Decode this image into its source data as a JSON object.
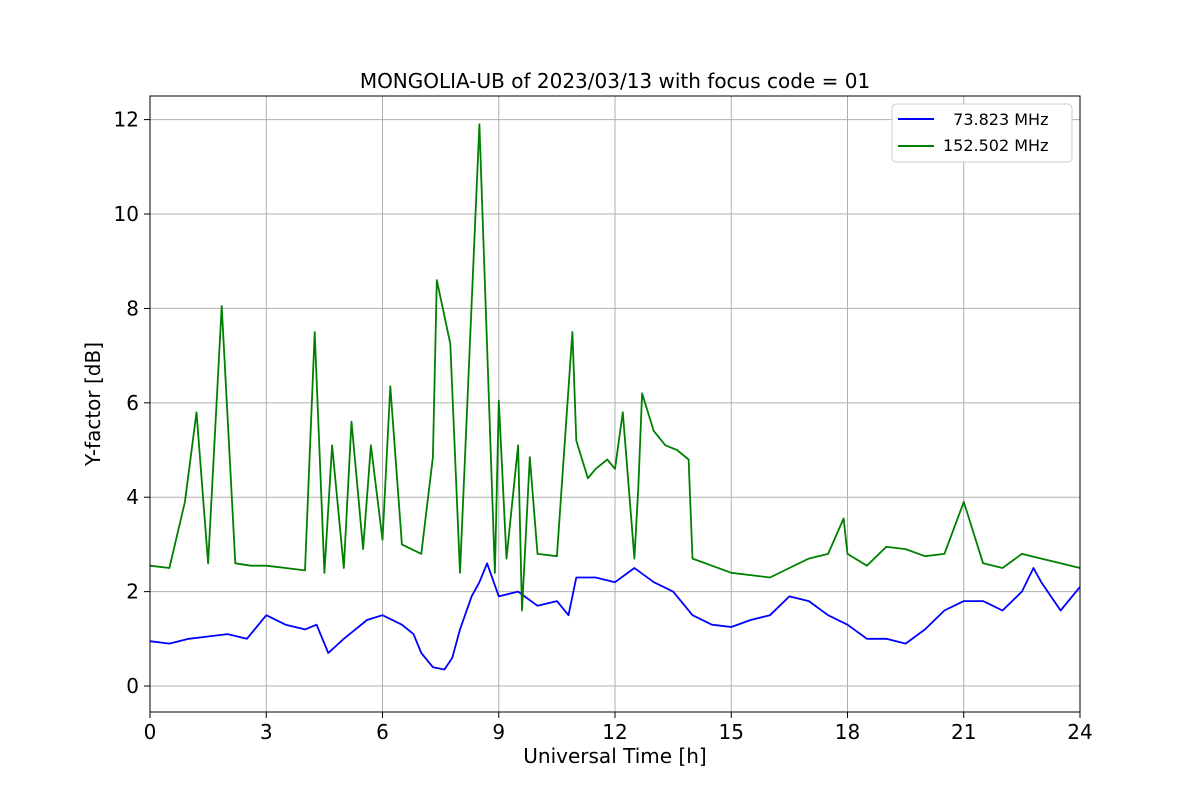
{
  "chart_data": {
    "type": "line",
    "title": "MONGOLIA-UB of 2023/03/13 with focus code = 01",
    "xlabel": "Universal Time [h]",
    "ylabel": "Y-factor [dB]",
    "xlim": [
      0,
      24
    ],
    "ylim": [
      -0.55,
      12.5
    ],
    "xticks": [
      0,
      3,
      6,
      9,
      12,
      15,
      18,
      21,
      24
    ],
    "yticks": [
      0,
      2,
      4,
      6,
      8,
      10,
      12
    ],
    "grid": true,
    "legend_position": "top-right",
    "series": [
      {
        "name": "  73.823 MHz",
        "color": "#0000ff",
        "x": [
          0,
          0.5,
          1,
          1.5,
          2,
          2.5,
          3,
          3.5,
          4,
          4.3,
          4.6,
          5,
          5.3,
          5.6,
          6,
          6.5,
          6.8,
          7,
          7.3,
          7.6,
          7.8,
          8,
          8.3,
          8.5,
          8.7,
          9,
          9.5,
          10,
          10.5,
          10.8,
          11,
          11.5,
          12,
          12.5,
          13,
          13.5,
          14,
          14.5,
          15,
          15.5,
          16,
          16.5,
          17,
          17.5,
          18,
          18.5,
          19,
          19.5,
          20,
          20.5,
          21,
          21.5,
          22,
          22.5,
          22.8,
          23,
          23.5,
          24
        ],
        "y": [
          0.95,
          0.9,
          1.0,
          1.05,
          1.1,
          1.0,
          1.5,
          1.3,
          1.2,
          1.3,
          0.7,
          1.0,
          1.2,
          1.4,
          1.5,
          1.3,
          1.1,
          0.7,
          0.4,
          0.35,
          0.6,
          1.2,
          1.9,
          2.2,
          2.6,
          1.9,
          2.0,
          1.7,
          1.8,
          1.5,
          2.3,
          2.3,
          2.2,
          2.5,
          2.2,
          2.0,
          1.5,
          1.3,
          1.25,
          1.4,
          1.5,
          1.9,
          1.8,
          1.5,
          1.3,
          1.0,
          1.0,
          0.9,
          1.2,
          1.6,
          1.8,
          1.8,
          1.6,
          2.0,
          2.5,
          2.2,
          1.6,
          2.1
        ]
      },
      {
        "name": "152.502 MHz",
        "color": "#008000",
        "x": [
          0,
          0.5,
          0.9,
          1.2,
          1.5,
          1.85,
          2.2,
          2.6,
          3,
          3.5,
          4,
          4.25,
          4.5,
          4.7,
          5,
          5.2,
          5.5,
          5.7,
          6,
          6.2,
          6.5,
          7,
          7.3,
          7.4,
          7.75,
          8,
          8.5,
          8.9,
          9,
          9.2,
          9.5,
          9.6,
          9.8,
          10,
          10.5,
          10.9,
          11,
          11.3,
          11.5,
          11.8,
          12,
          12.2,
          12.5,
          12.6,
          12.7,
          13,
          13.3,
          13.6,
          13.9,
          14,
          14.5,
          15,
          15.5,
          16,
          16.5,
          17,
          17.5,
          17.9,
          18,
          18.5,
          19,
          19.5,
          20,
          20.5,
          21,
          21.5,
          22,
          22.5,
          23,
          23.5,
          24
        ],
        "y": [
          2.55,
          2.5,
          3.9,
          5.8,
          2.6,
          8.05,
          2.6,
          2.55,
          2.55,
          2.5,
          2.45,
          7.5,
          2.4,
          5.1,
          2.5,
          5.6,
          2.9,
          5.1,
          3.1,
          6.35,
          3.0,
          2.8,
          4.85,
          8.6,
          7.25,
          2.4,
          11.9,
          2.4,
          6.05,
          2.7,
          5.1,
          1.6,
          4.85,
          2.8,
          2.75,
          7.5,
          5.2,
          4.4,
          4.6,
          4.8,
          4.6,
          5.8,
          2.7,
          4.2,
          6.2,
          5.4,
          5.1,
          5.0,
          4.8,
          2.7,
          2.55,
          2.4,
          2.35,
          2.3,
          2.5,
          2.7,
          2.8,
          3.55,
          2.8,
          2.55,
          2.95,
          2.9,
          2.75,
          2.8,
          3.9,
          2.6,
          2.5,
          2.8,
          2.7,
          2.6,
          2.5
        ]
      }
    ]
  }
}
